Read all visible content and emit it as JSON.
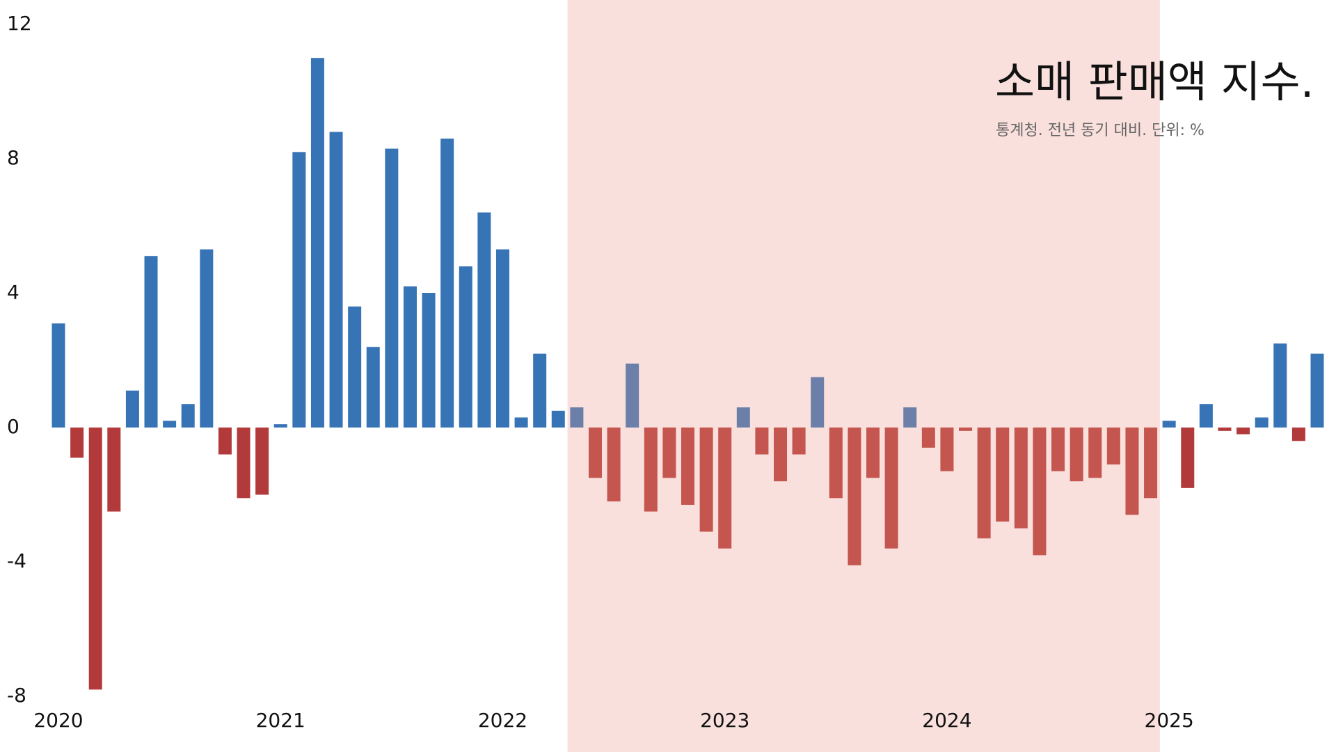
{
  "chart_data": {
    "type": "bar",
    "title": "소매 판매액 지수.",
    "subtitle": "통계청. 전년 동기 대비. 단위: %",
    "categories": [
      "2020",
      null,
      null,
      null,
      null,
      null,
      null,
      null,
      null,
      null,
      null,
      null,
      "2021",
      null,
      null,
      null,
      null,
      null,
      null,
      null,
      null,
      null,
      null,
      null,
      "2022",
      null,
      null,
      null,
      null,
      null,
      null,
      null,
      null,
      null,
      null,
      null,
      "2023",
      null,
      null,
      null,
      null,
      null,
      null,
      null,
      null,
      null,
      null,
      null,
      "2024",
      null,
      null,
      null,
      null,
      null,
      null,
      null,
      null,
      null,
      null,
      null,
      "2025",
      null,
      null,
      null,
      null,
      null,
      null,
      null,
      null
    ],
    "values": [
      3.1,
      -0.9,
      -7.8,
      -2.5,
      1.1,
      5.1,
      0.2,
      0.7,
      5.3,
      -0.8,
      -2.1,
      -2.0,
      0.1,
      8.2,
      11.0,
      8.8,
      3.6,
      2.4,
      8.3,
      4.2,
      4.0,
      8.6,
      4.8,
      6.4,
      5.3,
      0.3,
      2.2,
      0.5,
      0.6,
      -1.5,
      -2.2,
      1.9,
      -2.5,
      -1.5,
      -2.3,
      -3.1,
      -3.6,
      0.6,
      -0.8,
      -1.6,
      -0.8,
      1.5,
      -2.1,
      -4.1,
      -1.5,
      -3.6,
      0.6,
      -0.6,
      -1.3,
      -0.1,
      -3.3,
      -2.8,
      -3.0,
      -3.8,
      -1.3,
      -1.6,
      -1.5,
      -1.1,
      -2.6,
      -2.1,
      0.2,
      -1.8,
      0.7,
      -0.1,
      -0.2,
      0.3,
      2.5,
      -0.4,
      2.2
    ],
    "colors": {
      "positive": "#3674b6",
      "negative": "#b33a3a",
      "highlight_positive": "#6b7fa8",
      "highlight_negative": "#c4554f",
      "highlight_band": "#f9e0dc"
    },
    "highlight_range": [
      28,
      59
    ],
    "ylim": [
      -8,
      12
    ],
    "yticks": [
      -8,
      -4,
      0,
      4,
      8,
      12
    ]
  }
}
